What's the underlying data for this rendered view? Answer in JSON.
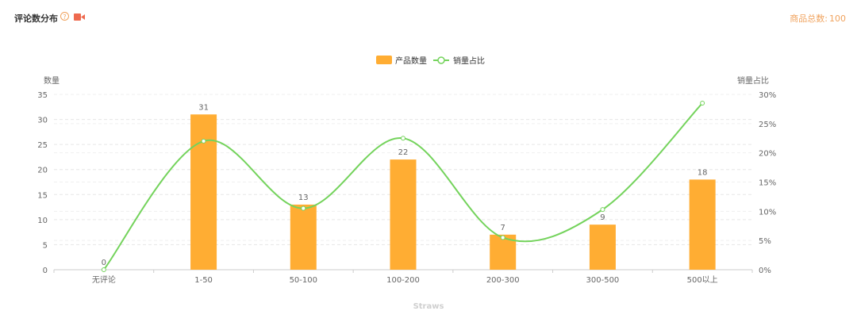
{
  "header": {
    "title": "评论数分布",
    "help_icon": "question-circle-icon",
    "video_icon": "video-camera-icon",
    "total_label": "商品总数:",
    "total_value": "100"
  },
  "footer": {
    "text": "Straws"
  },
  "colors": {
    "bar": "#ffad33",
    "line": "#74d35c",
    "axis_text": "#666666",
    "grid": "#e6e6e6",
    "accent": "#f0a35e",
    "video_icon": "#ee6a4f"
  },
  "chart_data": {
    "type": "bar",
    "categories": [
      "无评论",
      "1-50",
      "50-100",
      "100-200",
      "200-300",
      "300-500",
      "500以上"
    ],
    "series": [
      {
        "name": "产品数量",
        "type": "bar",
        "axis": "left",
        "values": [
          0,
          31,
          13,
          22,
          7,
          9,
          18
        ]
      },
      {
        "name": "销量占比",
        "type": "line",
        "axis": "right",
        "smooth": true,
        "values": [
          0,
          22,
          10.5,
          22.5,
          5.5,
          10.3,
          28.5
        ]
      }
    ],
    "ylabel": "数量",
    "y2label": "销量占比",
    "ylim": [
      0,
      35
    ],
    "yticks": [
      "0",
      "5",
      "10",
      "15",
      "20",
      "25",
      "30",
      "35"
    ],
    "y2lim": [
      0,
      30
    ],
    "y2ticks": [
      "0%",
      "5%",
      "10%",
      "15%",
      "20%",
      "25%",
      "30%"
    ],
    "grid": true,
    "legend": "top-center"
  }
}
